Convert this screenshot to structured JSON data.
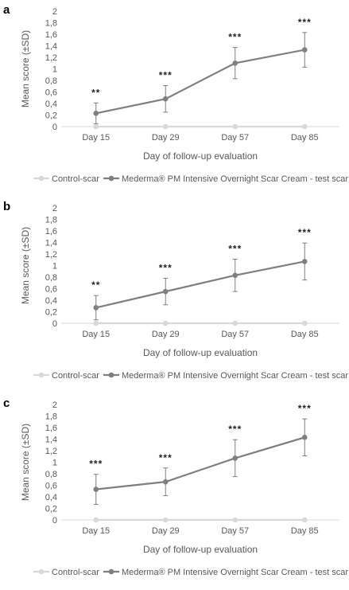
{
  "chart_data": [
    {
      "panel": "a",
      "type": "line",
      "categories": [
        "Day 15",
        "Day 29",
        "Day 57",
        "Day 85"
      ],
      "ylim": [
        0,
        2
      ],
      "yticks": [
        "0",
        "0,2",
        "0,4",
        "0,6",
        "0,8",
        "1",
        "1,2",
        "1,4",
        "1,6",
        "1,8",
        "2"
      ],
      "xlabel": "Day of follow-up evaluation",
      "ylabel": "Mean score (±SD)",
      "grid": false,
      "legend_position": "bottom",
      "series": [
        {
          "name": "Control-scar",
          "color": "#d9d9d9",
          "values": [
            0,
            0,
            0,
            0
          ]
        },
        {
          "name": "Mederma® PM Intensive Overnight Scar Cream - test scar",
          "color": "#7f7f7f",
          "values": [
            0.23,
            0.48,
            1.1,
            1.33
          ],
          "sd": [
            0.18,
            0.23,
            0.27,
            0.3
          ]
        }
      ],
      "annotations": [
        "**",
        "***",
        "***",
        "***"
      ]
    },
    {
      "panel": "b",
      "type": "line",
      "categories": [
        "Day 15",
        "Day 29",
        "Day 57",
        "Day 85"
      ],
      "ylim": [
        0,
        2
      ],
      "yticks": [
        "0",
        "0,2",
        "0,4",
        "0,6",
        "0,8",
        "1",
        "1,2",
        "1,4",
        "1,6",
        "1,8",
        "2"
      ],
      "xlabel": "Day of follow-up evaluation",
      "ylabel": "Mean score (±SD)",
      "grid": false,
      "legend_position": "bottom",
      "series": [
        {
          "name": "Control-scar",
          "color": "#d9d9d9",
          "values": [
            0,
            0,
            0,
            0
          ]
        },
        {
          "name": "Mederma® PM Intensive Overnight Scar Cream - test scar",
          "color": "#7f7f7f",
          "values": [
            0.27,
            0.55,
            0.83,
            1.07
          ],
          "sd": [
            0.21,
            0.23,
            0.28,
            0.32
          ]
        }
      ],
      "annotations": [
        "**",
        "***",
        "***",
        "***"
      ]
    },
    {
      "panel": "c",
      "type": "line",
      "categories": [
        "Day 15",
        "Day 29",
        "Day 57",
        "Day 85"
      ],
      "ylim": [
        0,
        2
      ],
      "yticks": [
        "0",
        "0,2",
        "0,4",
        "0,6",
        "0,8",
        "1",
        "1,2",
        "1,4",
        "1,6",
        "1,8",
        "2"
      ],
      "xlabel": "Day of follow-up evaluation",
      "ylabel": "Mean score (±SD)",
      "grid": false,
      "legend_position": "bottom",
      "series": [
        {
          "name": "Control-scar",
          "color": "#d9d9d9",
          "values": [
            0,
            0,
            0,
            0
          ]
        },
        {
          "name": "Mederma® PM Intensive Overnight Scar Cream - test scar",
          "color": "#7f7f7f",
          "values": [
            0.53,
            0.66,
            1.07,
            1.43
          ],
          "sd": [
            0.26,
            0.24,
            0.32,
            0.32
          ]
        }
      ],
      "annotations": [
        "***",
        "***",
        "***",
        "***"
      ]
    }
  ]
}
